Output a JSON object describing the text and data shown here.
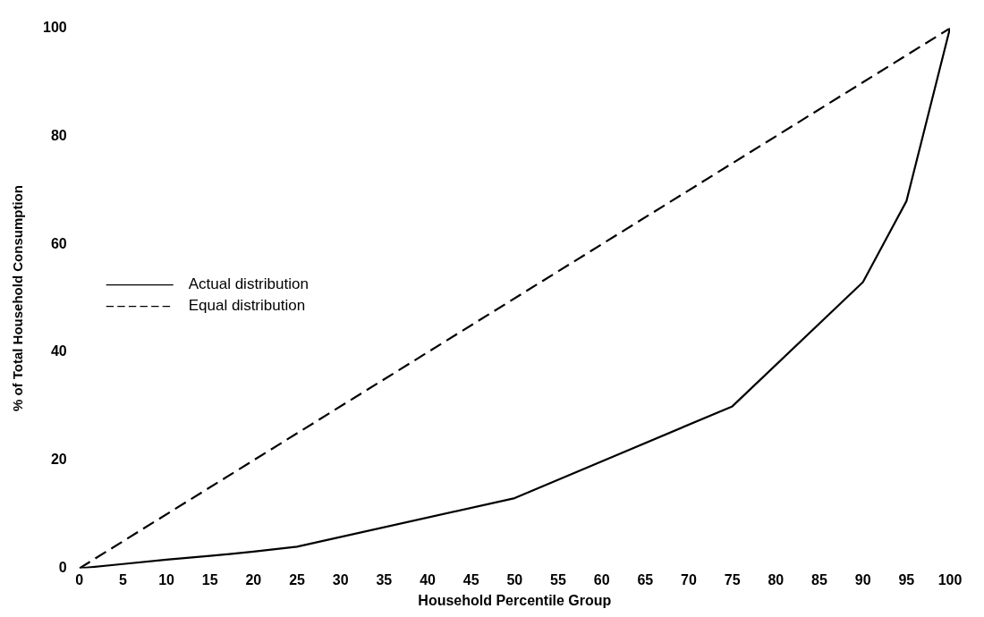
{
  "chart_data": {
    "type": "line",
    "xlabel": "Household Percentile Group",
    "ylabel": "% of Total Household Consumption",
    "xlim": [
      0,
      100
    ],
    "xticks": [
      0,
      5,
      10,
      15,
      20,
      25,
      30,
      35,
      40,
      45,
      50,
      55,
      60,
      65,
      70,
      75,
      80,
      85,
      90,
      95,
      100
    ],
    "ylim": [
      0,
      100
    ],
    "yticks": [
      0,
      20,
      40,
      60,
      80,
      100
    ],
    "grid": false,
    "legend": "left",
    "marker": "none",
    "series": [
      {
        "name": "Actual distribution",
        "color": "#000000",
        "line_style": "solid",
        "x": [
          0,
          5,
          10,
          15,
          20,
          25,
          50,
          75,
          90,
          95,
          100
        ],
        "values": [
          0,
          0.8,
          1.6,
          2.3,
          3.1,
          4,
          13,
          30,
          53,
          68,
          100
        ]
      },
      {
        "name": "Equal distribution",
        "color": "#000000",
        "line_style": "dashed",
        "x": [
          0,
          100
        ],
        "values": [
          0,
          100
        ]
      }
    ]
  }
}
